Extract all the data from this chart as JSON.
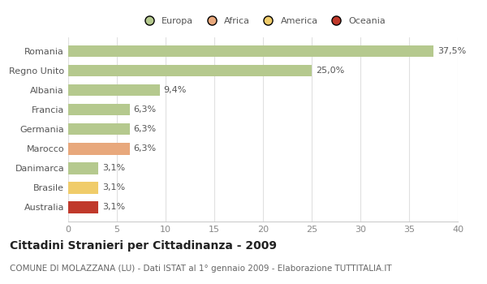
{
  "categories": [
    "Romania",
    "Regno Unito",
    "Albania",
    "Francia",
    "Germania",
    "Marocco",
    "Danimarca",
    "Brasile",
    "Australia"
  ],
  "values": [
    37.5,
    25.0,
    9.4,
    6.3,
    6.3,
    6.3,
    3.1,
    3.1,
    3.1
  ],
  "labels": [
    "37,5%",
    "25,0%",
    "9,4%",
    "6,3%",
    "6,3%",
    "6,3%",
    "3,1%",
    "3,1%",
    "3,1%"
  ],
  "bar_colors": [
    "#b5c98e",
    "#b5c98e",
    "#b5c98e",
    "#b5c98e",
    "#b5c98e",
    "#e8a87c",
    "#b5c98e",
    "#f0cc6a",
    "#c0392b"
  ],
  "legend": [
    {
      "label": "Europa",
      "color": "#b5c98e"
    },
    {
      "label": "Africa",
      "color": "#e8a87c"
    },
    {
      "label": "America",
      "color": "#f0cc6a"
    },
    {
      "label": "Oceania",
      "color": "#c0392b"
    }
  ],
  "xlim": [
    0,
    40
  ],
  "xticks": [
    0,
    5,
    10,
    15,
    20,
    25,
    30,
    35,
    40
  ],
  "title": "Cittadini Stranieri per Cittadinanza - 2009",
  "subtitle": "COMUNE DI MOLAZZANA (LU) - Dati ISTAT al 1° gennaio 2009 - Elaborazione TUTTITALIA.IT",
  "background_color": "#ffffff",
  "grid_color": "#e0e0e0",
  "label_fontsize": 8,
  "tick_label_fontsize": 8,
  "title_fontsize": 10,
  "subtitle_fontsize": 7.5
}
